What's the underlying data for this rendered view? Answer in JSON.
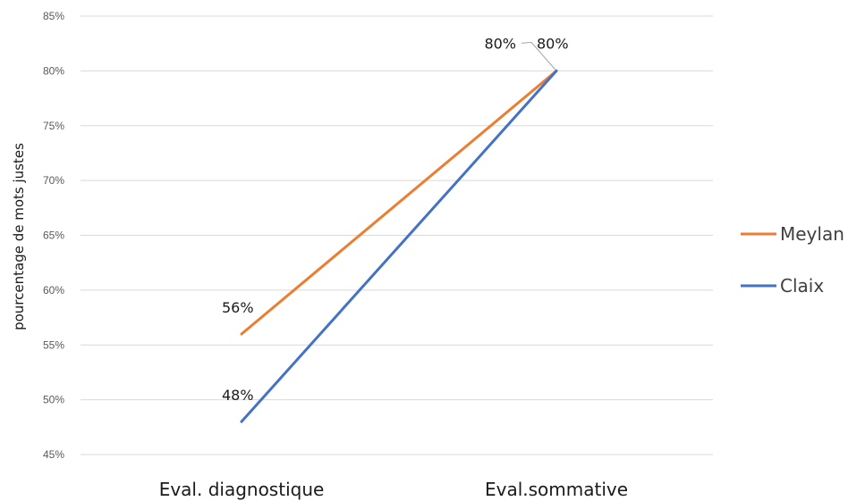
{
  "chart_data": {
    "type": "line",
    "categories": [
      "Eval. diagnostique",
      "Eval.sommative"
    ],
    "series": [
      {
        "name": "Meylan",
        "values": [
          56,
          80
        ],
        "labels": [
          "56%",
          "80%"
        ],
        "color": "#ED7D31"
      },
      {
        "name": "Claix",
        "values": [
          48,
          80
        ],
        "labels": [
          "48%",
          "80%"
        ],
        "color": "#4472C4"
      }
    ],
    "ylabel": "pourcentage de mots justes",
    "xlabel": "",
    "ylim": [
      45,
      85
    ],
    "yticks": [
      "45%",
      "50%",
      "55%",
      "60%",
      "65%",
      "70%",
      "75%",
      "80%",
      "85%"
    ],
    "grid": true,
    "legend_position": "right",
    "gridline_color": "#D9D9D9"
  }
}
